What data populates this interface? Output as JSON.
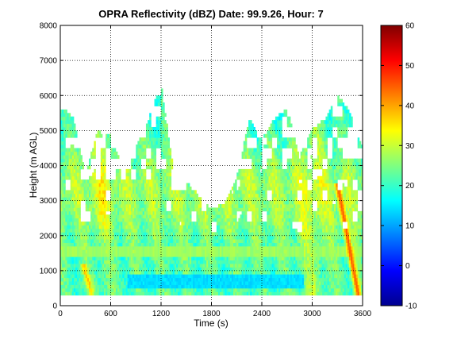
{
  "chart_data": {
    "type": "heatmap",
    "title": "OPRA Reflectivity (dBZ)  Date: 99.9.26, Hour: 7",
    "xlabel": "Time (s)",
    "ylabel": "Height (m AGL)",
    "xlim": [
      0,
      3600
    ],
    "ylim": [
      0,
      8000
    ],
    "xticks": [
      0,
      600,
      1200,
      1800,
      2400,
      3000,
      3600
    ],
    "yticks": [
      0,
      1000,
      2000,
      3000,
      4000,
      5000,
      6000,
      7000,
      8000
    ],
    "grid": true,
    "colorbar": {
      "min": -10,
      "max": 60,
      "ticks": [
        -10,
        0,
        10,
        20,
        30,
        40,
        50,
        60
      ],
      "colormap": "jet"
    },
    "data_bottom_height": 300,
    "echo_tops": [
      {
        "t": 0,
        "top": 5600
      },
      {
        "t": 150,
        "top": 5400
      },
      {
        "t": 300,
        "top": 3700
      },
      {
        "t": 450,
        "top": 5000
      },
      {
        "t": 600,
        "top": 4800
      },
      {
        "t": 750,
        "top": 3900
      },
      {
        "t": 900,
        "top": 4500
      },
      {
        "t": 1050,
        "top": 5300
      },
      {
        "t": 1200,
        "top": 6300
      },
      {
        "t": 1350,
        "top": 3800
      },
      {
        "t": 1500,
        "top": 3500
      },
      {
        "t": 1650,
        "top": 3100
      },
      {
        "t": 1800,
        "top": 2700
      },
      {
        "t": 1950,
        "top": 2900
      },
      {
        "t": 2100,
        "top": 3600
      },
      {
        "t": 2250,
        "top": 5300
      },
      {
        "t": 2400,
        "top": 4700
      },
      {
        "t": 2550,
        "top": 5300
      },
      {
        "t": 2700,
        "top": 5600
      },
      {
        "t": 2850,
        "top": 4200
      },
      {
        "t": 3000,
        "top": 5000
      },
      {
        "t": 3150,
        "top": 5300
      },
      {
        "t": 3300,
        "top": 6000
      },
      {
        "t": 3450,
        "top": 5500
      },
      {
        "t": 3600,
        "top": 4500
      }
    ],
    "features": [
      {
        "name": "low-reflectivity-band",
        "t_range": [
          800,
          2900
        ],
        "height_range": [
          550,
          850
        ],
        "dbz": 14
      },
      {
        "name": "bright-band",
        "t_range": [
          0,
          3600
        ],
        "height_range": [
          1450,
          1650
        ],
        "dbz": 27
      },
      {
        "name": "sloping-high-reflectivity-streak",
        "t_range": [
          3300,
          3550
        ],
        "height_range": [
          300,
          3500
        ],
        "dbz_max": 45
      }
    ]
  }
}
